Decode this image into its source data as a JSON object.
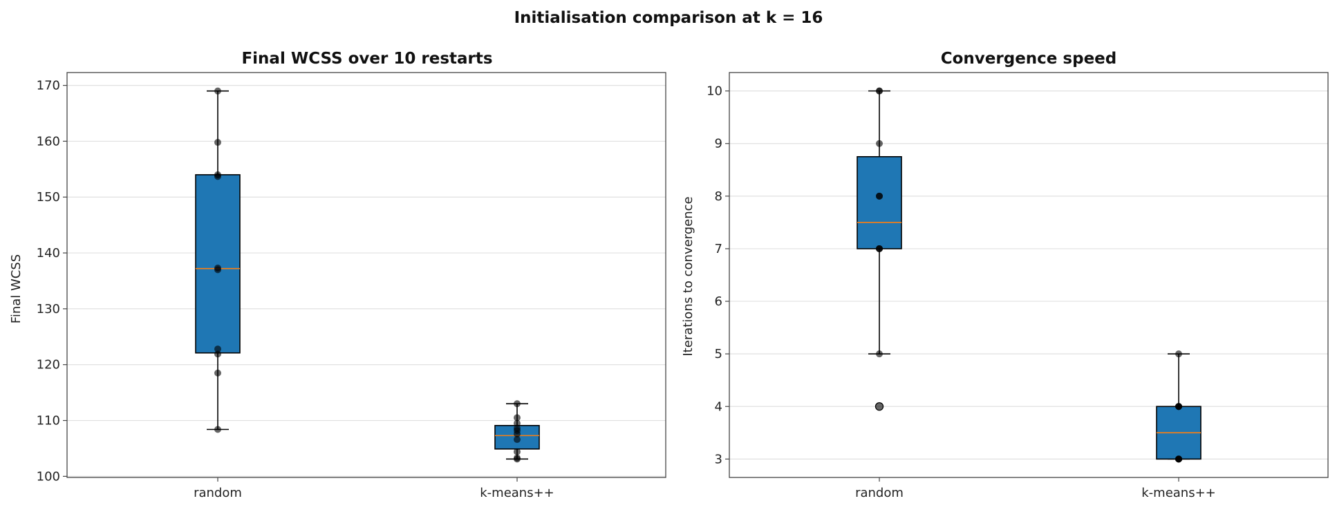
{
  "figure": {
    "title": "Initialisation comparison at k = 16"
  },
  "colors": {
    "box_fill": "#1f77b4",
    "median": "#ff7f0e",
    "points": "#000000",
    "grid": "#e0e0e0",
    "frame": "#444444"
  },
  "chart_data": [
    {
      "type": "box",
      "title": "Final WCSS over 10 restarts",
      "xlabel": "",
      "ylabel": "Final WCSS",
      "ylim": [
        99.8,
        172.3
      ],
      "yticks": [
        100,
        110,
        120,
        130,
        140,
        150,
        160,
        170
      ],
      "grid": "y",
      "categories": [
        "random",
        "k-means++"
      ],
      "boxes": [
        {
          "name": "random",
          "whisker_low": 108.4,
          "q1": 122.1,
          "median": 137.2,
          "q3": 154.0,
          "whisker_high": 169.0,
          "outliers": [],
          "points": [
            108.4,
            118.5,
            121.9,
            122.8,
            137.0,
            137.3,
            153.7,
            154.0,
            159.8,
            169.0
          ]
        },
        {
          "name": "k-means++",
          "whisker_low": 103.1,
          "q1": 104.9,
          "median": 107.3,
          "q3": 109.1,
          "whisker_high": 113.0,
          "outliers": [],
          "points": [
            103.1,
            103.3,
            104.4,
            106.6,
            107.6,
            108.2,
            108.6,
            109.5,
            110.5,
            113.0
          ]
        }
      ]
    },
    {
      "type": "box",
      "title": "Convergence speed",
      "xlabel": "",
      "ylabel": "Iterations to convergence",
      "ylim": [
        2.65,
        10.35
      ],
      "yticks": [
        3,
        4,
        5,
        6,
        7,
        8,
        9,
        10
      ],
      "grid": "y",
      "categories": [
        "random",
        "k-means++"
      ],
      "boxes": [
        {
          "name": "random",
          "whisker_low": 5,
          "q1": 7,
          "median": 7.5,
          "q3": 8.75,
          "whisker_high": 10,
          "outliers": [
            4
          ],
          "points": [
            4,
            5,
            7,
            7,
            7,
            8,
            8,
            9,
            10,
            10
          ]
        },
        {
          "name": "k-means++",
          "whisker_low": 3,
          "q1": 3,
          "median": 3.5,
          "q3": 4,
          "whisker_high": 5,
          "outliers": [],
          "points": [
            3,
            3,
            3,
            3,
            3,
            4,
            4,
            4,
            4,
            5
          ]
        }
      ]
    }
  ]
}
